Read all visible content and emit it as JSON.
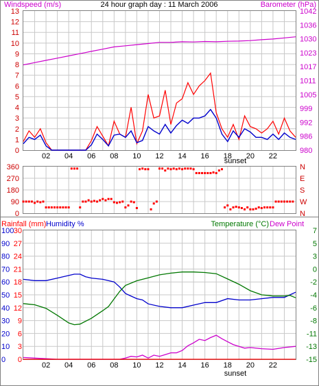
{
  "title": "24 hour graph day : 11 March 2006",
  "colors": {
    "wind": "#ff0000",
    "wind_avg": "#0000cc",
    "barometer": "#cc00cc",
    "direction": "#ff0000",
    "humidity": "#0000cc",
    "temperature": "#007700",
    "dewpoint": "#cc00cc",
    "rain": "#ff0000",
    "grid": "#c8c8c8",
    "frame": "#808080"
  },
  "sunset_label": "sunset",
  "x_ticks": [
    "02",
    "04",
    "06",
    "08",
    "10",
    "12",
    "14",
    "16",
    "18",
    "20",
    "22"
  ],
  "chart_data": [
    {
      "type": "line",
      "panel": "wind",
      "ylabel": "Windspeed (m/s)",
      "y2label": "Barometer (hPa)",
      "x_range_hours": [
        0,
        24
      ],
      "ylim": [
        0,
        13
      ],
      "y_ticks": [
        "0",
        "1",
        "2",
        "3",
        "4",
        "5",
        "6",
        "7",
        "8",
        "9",
        "10",
        "11",
        "12",
        "13"
      ],
      "y2lim": [
        980,
        1042
      ],
      "y2_ticks": [
        "980",
        "986",
        "992",
        "999",
        "1005",
        "1011",
        "1017",
        "1023",
        "1030",
        "1036",
        "1042"
      ],
      "series": [
        {
          "axis": "left",
          "color_key": "wind",
          "x": [
            0.0,
            0.5,
            1.0,
            1.5,
            2.0,
            2.5,
            3.0,
            3.5,
            4.0,
            4.5,
            5.0,
            5.5,
            6.0,
            6.5,
            7.0,
            7.5,
            8.0,
            8.5,
            9.0,
            9.5,
            10.0,
            10.5,
            11.0,
            11.5,
            12.0,
            12.5,
            13.0,
            13.5,
            14.0,
            14.5,
            15.0,
            15.5,
            16.0,
            16.5,
            17.0,
            17.5,
            18.0,
            18.5,
            19.0,
            19.5,
            20.0,
            20.5,
            21.0,
            21.5,
            22.0,
            22.5,
            23.0,
            23.5,
            24.0
          ],
          "values": [
            0.8,
            1.8,
            1.2,
            2.0,
            0.7,
            0.0,
            0.0,
            0.0,
            0.0,
            0.0,
            0.0,
            0.0,
            0.9,
            2.2,
            1.3,
            0.4,
            2.7,
            1.5,
            1.2,
            4.0,
            0.6,
            1.8,
            5.2,
            3.0,
            3.2,
            5.6,
            2.4,
            4.4,
            4.8,
            6.3,
            5.2,
            6.0,
            6.5,
            7.2,
            3.5,
            2.0,
            1.2,
            2.4,
            1.0,
            3.2,
            2.2,
            2.0,
            1.6,
            2.0,
            2.7,
            1.5,
            3.0,
            1.8,
            1.2
          ]
        },
        {
          "axis": "left",
          "color_key": "wind_avg",
          "x": [
            0.0,
            0.5,
            1.0,
            1.5,
            2.0,
            2.5,
            3.0,
            3.5,
            4.0,
            4.5,
            5.0,
            5.5,
            6.0,
            6.5,
            7.0,
            7.5,
            8.0,
            8.5,
            9.0,
            9.5,
            10.0,
            10.5,
            11.0,
            11.5,
            12.0,
            12.5,
            13.0,
            13.5,
            14.0,
            14.5,
            15.0,
            15.5,
            16.0,
            16.5,
            17.0,
            17.5,
            18.0,
            18.5,
            19.0,
            19.5,
            20.0,
            20.5,
            21.0,
            21.5,
            22.0,
            22.5,
            23.0,
            23.5,
            24.0
          ],
          "values": [
            0.6,
            1.2,
            1.0,
            1.4,
            0.4,
            0.0,
            0.0,
            0.0,
            0.0,
            0.0,
            0.0,
            0.0,
            0.5,
            1.5,
            1.0,
            0.4,
            1.4,
            1.5,
            1.2,
            1.8,
            0.7,
            0.9,
            2.2,
            1.8,
            1.5,
            2.4,
            1.6,
            2.3,
            2.8,
            2.5,
            3.0,
            3.0,
            3.2,
            3.8,
            3.0,
            1.5,
            0.8,
            1.8,
            1.2,
            2.0,
            1.7,
            1.2,
            1.2,
            1.0,
            1.5,
            1.0,
            1.6,
            1.2,
            1.0
          ]
        },
        {
          "axis": "right",
          "color_key": "barometer",
          "x": [
            0,
            1,
            2,
            3,
            4,
            5,
            6,
            7,
            8,
            9,
            10,
            11,
            12,
            13,
            14,
            15,
            16,
            17,
            18,
            19,
            20,
            21,
            22,
            23,
            24
          ],
          "values": [
            1018,
            1019,
            1020,
            1021,
            1022,
            1023,
            1024,
            1025,
            1026,
            1026.5,
            1027,
            1027.5,
            1028,
            1028,
            1028.3,
            1028.2,
            1028.4,
            1028.3,
            1028.5,
            1028.6,
            1028.8,
            1029.2,
            1029.5,
            1030,
            1030.5
          ]
        }
      ]
    },
    {
      "type": "scatter",
      "panel": "wind_direction",
      "x_range_hours": [
        0,
        24
      ],
      "ylim": [
        0,
        360
      ],
      "y_ticks": [
        "0",
        "90",
        "180",
        "270",
        "360"
      ],
      "y2_ticks": [
        "N",
        "W",
        "S",
        "E",
        "N"
      ],
      "series": [
        {
          "color_key": "direction",
          "x": [
            0.0,
            0.25,
            0.5,
            0.75,
            1.0,
            1.25,
            1.5,
            1.75,
            2.0,
            2.25,
            2.5,
            2.75,
            3.0,
            3.25,
            3.5,
            3.75,
            4.0,
            4.25,
            4.5,
            4.75,
            5.0,
            5.25,
            5.5,
            5.75,
            6.0,
            6.25,
            6.5,
            6.75,
            7.0,
            7.25,
            7.5,
            7.75,
            8.0,
            8.25,
            8.5,
            8.75,
            9.0,
            9.25,
            9.5,
            9.75,
            10.0,
            10.25,
            10.5,
            10.75,
            11.0,
            11.25,
            11.5,
            11.75,
            12.0,
            12.25,
            12.5,
            12.75,
            13.0,
            13.25,
            13.5,
            13.75,
            14.0,
            14.25,
            14.5,
            14.75,
            15.0,
            15.25,
            15.5,
            15.75,
            16.0,
            16.25,
            16.5,
            16.75,
            17.0,
            17.25,
            17.5,
            17.75,
            18.0,
            18.25,
            18.5,
            18.75,
            19.0,
            19.25,
            19.5,
            19.75,
            20.0,
            20.25,
            20.5,
            20.75,
            21.0,
            21.25,
            21.5,
            21.75,
            22.0,
            22.25,
            22.5,
            22.75,
            23.0,
            23.25,
            23.5,
            23.75
          ],
          "values": [
            90,
            90,
            90,
            90,
            80,
            90,
            85,
            90,
            45,
            45,
            45,
            45,
            45,
            45,
            45,
            45,
            45,
            345,
            345,
            345,
            45,
            90,
            90,
            100,
            90,
            95,
            90,
            100,
            110,
            100,
            110,
            110,
            85,
            80,
            85,
            90,
            45,
            60,
            90,
            85,
            40,
            340,
            345,
            340,
            340,
            30,
            75,
            90,
            345,
            345,
            330,
            345,
            340,
            345,
            340,
            345,
            340,
            345,
            345,
            345,
            340,
            310,
            310,
            310,
            310,
            310,
            310,
            315,
            310,
            330,
            340,
            45,
            60,
            30,
            45,
            50,
            45,
            40,
            30,
            45,
            30,
            30,
            35,
            45,
            40,
            45,
            45,
            45,
            45,
            90,
            90,
            90,
            90,
            90,
            90,
            90
          ]
        }
      ]
    },
    {
      "type": "line",
      "panel": "climate",
      "x_range_hours": [
        0,
        24
      ],
      "labels": {
        "rain": "Rainfall (mm)",
        "humidity": "Humidity %",
        "temperature": "Temperature (°C)",
        "dewpoint": "Dew Point"
      },
      "humidity_ylim": [
        0,
        100
      ],
      "humidity_ticks": [
        "0",
        "10",
        "20",
        "30",
        "40",
        "50",
        "60",
        "70",
        "80",
        "90",
        "100"
      ],
      "rain_ylim": [
        0,
        30
      ],
      "rain_ticks": [
        "0",
        "3",
        "6",
        "9",
        "12",
        "15",
        "18",
        "21",
        "24",
        "27",
        "30"
      ],
      "temp_ylim": [
        -15,
        7
      ],
      "temp_ticks": [
        "-15",
        "-13",
        "-11",
        "-8",
        "-6",
        "-4",
        "-2",
        "0",
        "3",
        "5",
        "7"
      ],
      "series": [
        {
          "axis": "humidity",
          "color_key": "humidity",
          "x": [
            0,
            1,
            2,
            3,
            4,
            4.5,
            5,
            5.5,
            6,
            7,
            8,
            8.5,
            9,
            9.5,
            10,
            10.5,
            11,
            12,
            13,
            14,
            15,
            16,
            17,
            18,
            19,
            20,
            21,
            22,
            23,
            23.5,
            24
          ],
          "values": [
            62,
            61,
            61,
            63,
            65,
            66,
            66,
            64,
            63,
            62,
            60,
            56,
            51,
            49,
            47,
            46,
            43,
            41,
            40,
            40,
            42,
            44,
            44,
            47,
            46,
            46,
            47,
            48,
            48,
            50,
            52
          ]
        },
        {
          "axis": "temperature",
          "color_key": "temperature",
          "x": [
            0,
            0.5,
            1,
            2,
            3,
            4,
            4.5,
            5,
            6,
            7,
            7.5,
            8,
            8.5,
            9,
            10,
            11,
            12,
            13,
            14,
            15,
            16,
            17,
            18,
            19,
            20,
            21,
            22,
            23,
            23.5,
            24
          ],
          "values": [
            -5.5,
            -5.6,
            -5.7,
            -6.3,
            -7.5,
            -8.8,
            -9.1,
            -9.0,
            -8.0,
            -6.7,
            -6.0,
            -4.7,
            -3.4,
            -2.4,
            -1.6,
            -1.1,
            -0.6,
            -0.3,
            -0.1,
            -0.1,
            -0.2,
            -0.4,
            -1.3,
            -2.2,
            -3.3,
            -4.0,
            -4.2,
            -4.2,
            -4.1,
            -4.5
          ]
        },
        {
          "axis": "temperature",
          "color_key": "dewpoint",
          "x": [
            0,
            1,
            2,
            3,
            4,
            5,
            6,
            7,
            8,
            8.5,
            9,
            9.5,
            10,
            10.5,
            11,
            11.5,
            12,
            12.5,
            13,
            13.5,
            14,
            14.5,
            15,
            15.5,
            16,
            16.5,
            17,
            17.5,
            18,
            18.5,
            19,
            19.5,
            20,
            21,
            22,
            23,
            24
          ],
          "values": [
            -14.7,
            -14.8,
            -14.9,
            -15,
            -15,
            -15,
            -15,
            -15,
            -15,
            -15,
            -14.8,
            -14.5,
            -14.6,
            -14.3,
            -14.8,
            -14.3,
            -14.5,
            -14.2,
            -13.9,
            -13.9,
            -13.5,
            -12.7,
            -12.2,
            -11.6,
            -11.8,
            -11.3,
            -10.9,
            -11.5,
            -12.0,
            -12.5,
            -12.8,
            -13.1,
            -13.0,
            -13.2,
            -13.3,
            -13.0,
            -12.8
          ]
        },
        {
          "axis": "rain",
          "color_key": "rain",
          "x": [
            0,
            24
          ],
          "values": [
            0,
            0
          ]
        }
      ]
    }
  ]
}
